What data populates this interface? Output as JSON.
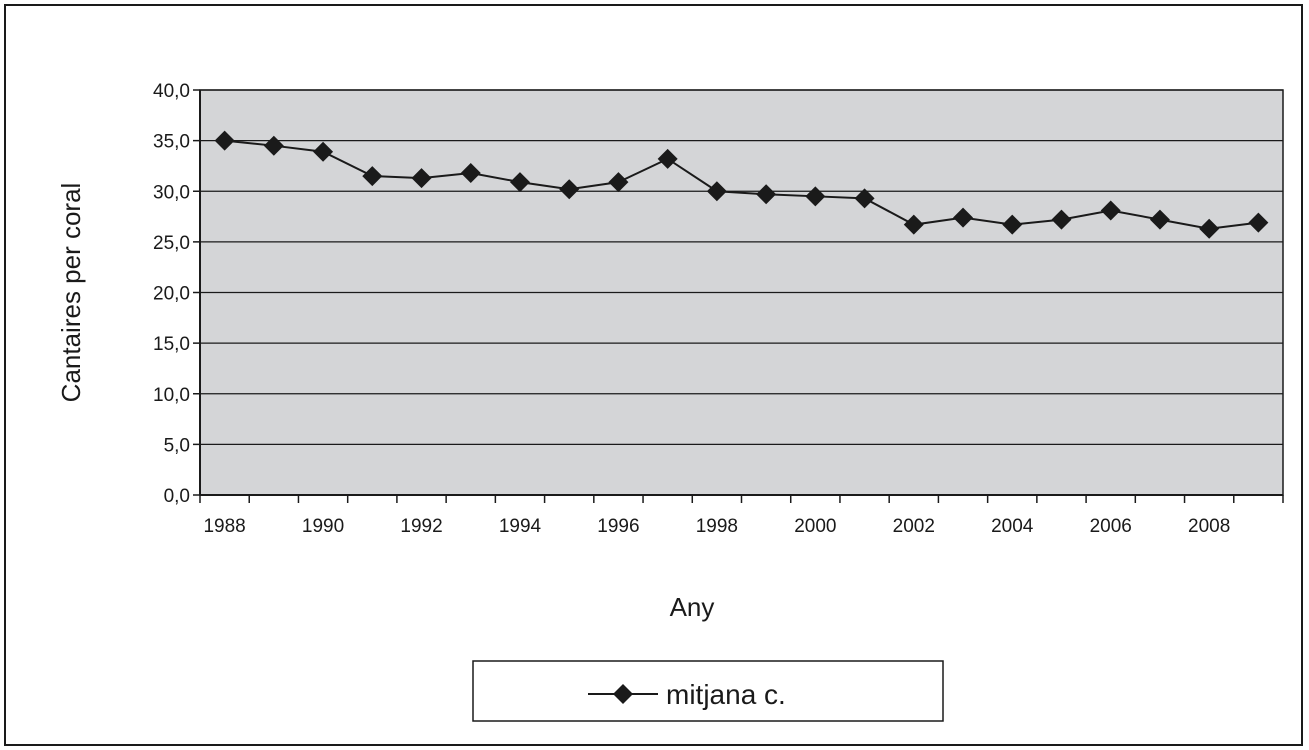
{
  "chart_data": {
    "type": "line",
    "title": "",
    "xlabel": "Any",
    "ylabel": "Cantaires per coral",
    "x": [
      1988,
      1989,
      1990,
      1991,
      1992,
      1993,
      1994,
      1995,
      1996,
      1997,
      1998,
      1999,
      2000,
      2001,
      2002,
      2003,
      2004,
      2005,
      2006,
      2007,
      2008,
      2009
    ],
    "x_tick_labels": [
      "1988",
      "1990",
      "1992",
      "1994",
      "1996",
      "1998",
      "2000",
      "2002",
      "2004",
      "2006",
      "2008"
    ],
    "y_tick_labels": [
      "0,0",
      "5,0",
      "10,0",
      "15,0",
      "20,0",
      "25,0",
      "30,0",
      "35,0",
      "40,0"
    ],
    "ylim": [
      0,
      40
    ],
    "grid": true,
    "plot_background": "#d4d5d7",
    "line_color": "#1a1a1a",
    "legend_position": "bottom",
    "series": [
      {
        "name": "mitjana c.",
        "marker": "diamond",
        "values": [
          35.0,
          34.5,
          33.9,
          31.5,
          31.3,
          31.8,
          30.9,
          30.2,
          30.9,
          33.2,
          30.0,
          29.7,
          29.5,
          29.3,
          26.7,
          27.4,
          26.7,
          27.2,
          28.1,
          27.2,
          26.3,
          26.9
        ]
      }
    ]
  }
}
